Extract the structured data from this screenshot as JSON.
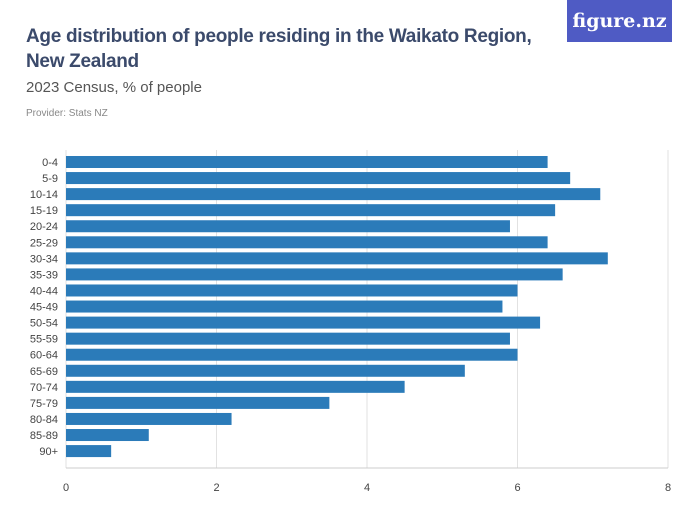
{
  "header": {
    "title": "Age distribution of people residing in the Waikato Region, New Zealand",
    "subtitle": "2023 Census, % of people",
    "provider": "Provider: Stats NZ",
    "logo": "figure.nz"
  },
  "chart_data": {
    "type": "bar",
    "orientation": "horizontal",
    "title": "Age distribution of people residing in the Waikato Region, New Zealand",
    "subtitle": "2023 Census, % of people",
    "categories": [
      "0-4",
      "5-9",
      "10-14",
      "15-19",
      "20-24",
      "25-29",
      "30-34",
      "35-39",
      "40-44",
      "45-49",
      "50-54",
      "55-59",
      "60-64",
      "65-69",
      "70-74",
      "75-79",
      "80-84",
      "85-89",
      "90+"
    ],
    "values": [
      6.4,
      6.7,
      7.1,
      6.5,
      5.9,
      6.4,
      7.2,
      6.6,
      6.0,
      5.8,
      6.3,
      5.9,
      6.0,
      5.3,
      4.5,
      3.5,
      2.2,
      1.1,
      0.6
    ],
    "xlim": [
      0,
      8
    ],
    "xticks": [
      0,
      2,
      4,
      6,
      8
    ],
    "grid": true,
    "bar_color": "#2b7bb9"
  }
}
